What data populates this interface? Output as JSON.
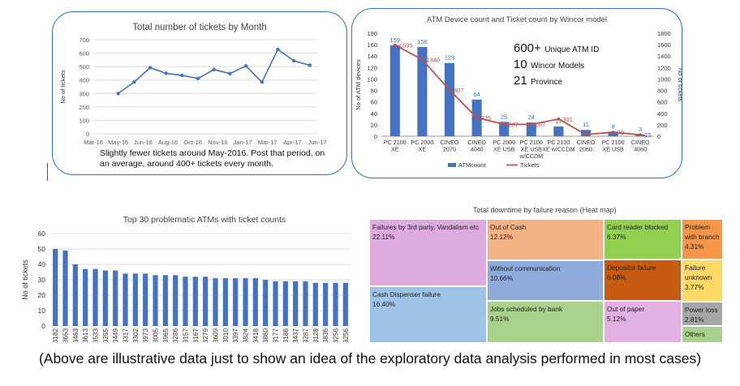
{
  "chart_data": [
    {
      "type": "line",
      "title": "Total number of tickets by Month",
      "ylabel": "No of tickets",
      "ylim": [
        0,
        700
      ],
      "y_ticks": [
        0,
        100,
        200,
        300,
        400,
        500,
        600,
        700
      ],
      "x_ticks": [
        "Mar-16",
        "May-16",
        "Jun-16",
        "Aug-16",
        "Oct-16",
        "Nov-16",
        "Jan-17",
        "Mar-17",
        "Apr-17",
        "Jun-17"
      ],
      "color": "#4472c4",
      "series": [
        {
          "values": [
            300,
            385,
            492,
            450,
            435,
            412,
            478,
            448,
            505,
            385,
            628,
            543,
            510
          ]
        }
      ],
      "note": "Slightly fewer tickets around May-2016. Post that period, on an average, around 400+ tickets every month."
    },
    {
      "type": "bar",
      "title": "ATM Device count and Ticket count by Wincor model",
      "ylabel": "No of ATM devices",
      "y2label": "No of tickets",
      "ylim": [
        0,
        180
      ],
      "y_ticks": [
        0,
        20,
        40,
        60,
        80,
        100,
        120,
        140,
        160,
        180
      ],
      "y2lim": [
        0,
        1800
      ],
      "y2_ticks": [
        0,
        200,
        400,
        600,
        800,
        1000,
        1200,
        1400,
        1600,
        1800
      ],
      "categories": [
        "PC 2100 XE",
        "PC 2000 XE",
        "CINEO 2070",
        "CINEO 4040",
        "PC 2000 XE USB",
        "PC 2100 XE USB w/CCDM",
        "PC 2100 XE w/CCDM",
        "CINEO 2060",
        "PC 2100 XE USB",
        "CINEO 4060"
      ],
      "bar_series": {
        "name": "ATMcount",
        "color": "#4472c4",
        "values": [
          159,
          156,
          128,
          64,
          25,
          24,
          17,
          11,
          8,
          3
        ]
      },
      "line_series": {
        "name": "Tickets",
        "color": "#c0504d",
        "values": [
          1595,
          1340,
          807,
          325,
          207,
          207,
          301,
          30,
          70,
          25
        ]
      },
      "tickets_labels": [
        "1595",
        "1340",
        "807",
        "325",
        "207",
        "207",
        "301",
        "",
        "70",
        "25"
      ],
      "stats": [
        {
          "big": "600+",
          "small": "Unique ATM ID"
        },
        {
          "big": "10",
          "small": "Wincor Models"
        },
        {
          "big": "21",
          "small": "Province"
        }
      ]
    },
    {
      "type": "bar",
      "title": "Top 30 problematic ATMs with ticket counts",
      "ylabel": "No of tickets",
      "ylim": [
        0,
        60
      ],
      "y_ticks": [
        0,
        10,
        20,
        30,
        40,
        50,
        60
      ],
      "color": "#4472c4",
      "categories": [
        "3182",
        "3653",
        "3463",
        "3613",
        "3533",
        "3255",
        "3449",
        "3317",
        "3302",
        "3973",
        "3005",
        "3965",
        "3286",
        "3157",
        "3167",
        "3279",
        "3609",
        "3010",
        "3397",
        "3824",
        "3418",
        "3860",
        "3177",
        "3186",
        "3437",
        "3287",
        "3128",
        "3836",
        "3256",
        "3256"
      ],
      "values": [
        50,
        49,
        40,
        37,
        37,
        36,
        36,
        34,
        34,
        34,
        33,
        33,
        33,
        32,
        32,
        32,
        31,
        31,
        31,
        31,
        31,
        30,
        29,
        29,
        29,
        29,
        28,
        28,
        28,
        28
      ]
    },
    {
      "type": "heatmap",
      "title": "Total downtime by failure reason (Heat map)",
      "cells": [
        {
          "label": "Failures by 3rd party, Vandalism etc",
          "value": "22.11%",
          "color": "#dfaadf"
        },
        {
          "label": "Cash Dispenser failure",
          "value": "16.40%",
          "color": "#9dc3e6"
        },
        {
          "label": "Out of Cash",
          "value": "12.12%",
          "color": "#f4b183"
        },
        {
          "label": "Without communication",
          "value": "10.66%",
          "color": "#8faadc"
        },
        {
          "label": "Jobs scheduled by bank",
          "value": "9.51%",
          "color": "#a9d18e"
        },
        {
          "label": "Card reader blocked",
          "value": "6.37%",
          "color": "#92d050"
        },
        {
          "label": "Depositor failure",
          "value": "6.08%",
          "color": "#c55a11"
        },
        {
          "label": "Out of paper",
          "value": "5.12%",
          "color": "#e2b0e2"
        },
        {
          "label": "Problem with branch",
          "value": "4.31%",
          "color": "#f79646"
        },
        {
          "label": "Failure unknown",
          "value": "3.77%",
          "color": "#ffd966"
        },
        {
          "label": "Power loss",
          "value": "2.81%",
          "color": "#a6a6a6"
        },
        {
          "label": "Others",
          "value": "",
          "color": "#a9d18e"
        }
      ]
    }
  ],
  "caption": "(Above are illustrative data just to show an idea of the exploratory data analysis performed in most cases)"
}
